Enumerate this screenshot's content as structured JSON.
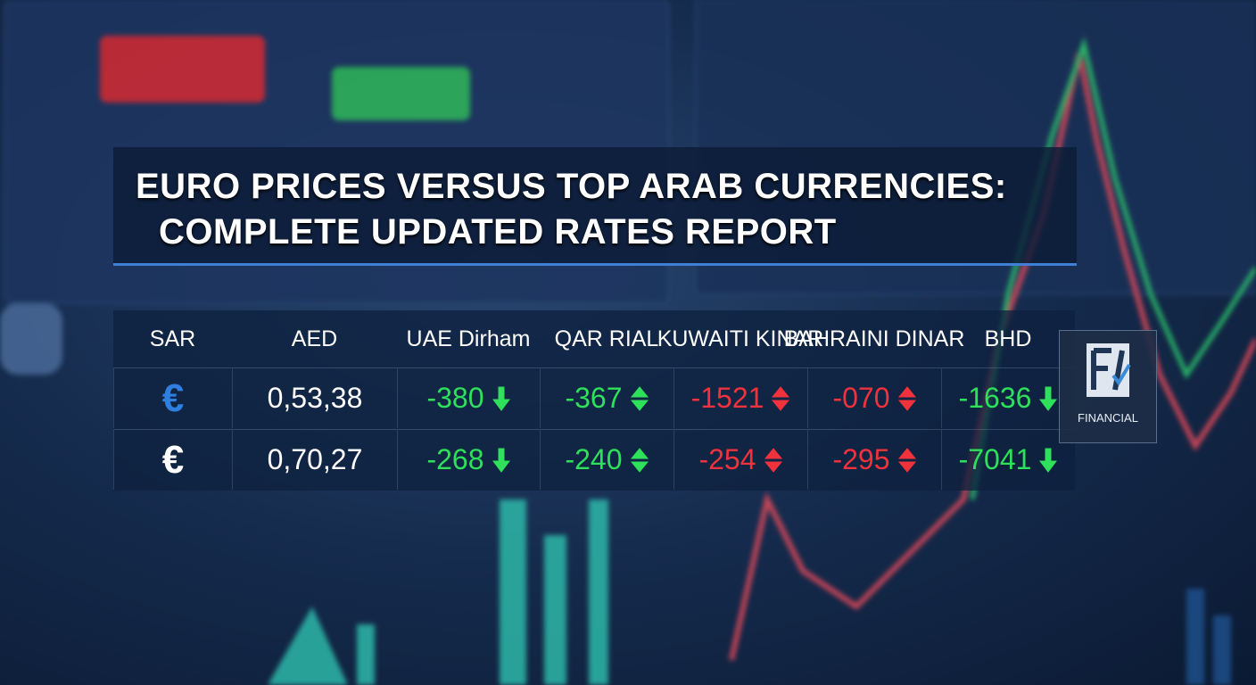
{
  "title": {
    "line1": "EURO PRICES VERSUS TOP ARAB CURRENCIES:",
    "line2": "COMPLETE UPDATED RATES REPORT"
  },
  "table": {
    "headers": [
      "SAR",
      "AED",
      "UAE Dirham",
      "QAR RIAL",
      "KUWAITI KINAR",
      "BAHRAINI DINAR",
      "BHD"
    ],
    "rows": [
      [
        {
          "text": "€",
          "color": "#2f7fe0"
        },
        {
          "text": "0,53,38",
          "color": "#ffffff"
        },
        {
          "text": "-380",
          "color": "#2ee05a",
          "direction": "down"
        },
        {
          "text": "-367",
          "color": "#2ee05a",
          "direction": "up"
        },
        {
          "text": "-1521",
          "color": "#f0323c",
          "direction": "up"
        },
        {
          "text": "-070",
          "color": "#f0323c",
          "direction": "up"
        },
        {
          "text": "-1636",
          "color": "#2ee05a",
          "direction": "down"
        }
      ],
      [
        {
          "text": "€",
          "color": "#ffffff"
        },
        {
          "text": "0,70,27",
          "color": "#ffffff"
        },
        {
          "text": "-268",
          "color": "#2ee05a",
          "direction": "down"
        },
        {
          "text": "-240",
          "color": "#2ee05a",
          "direction": "up"
        },
        {
          "text": "-254",
          "color": "#f0323c",
          "direction": "up"
        },
        {
          "text": "-295",
          "color": "#f0323c",
          "direction": "up"
        },
        {
          "text": "-7041",
          "color": "#2ee05a",
          "direction": "down"
        }
      ]
    ]
  },
  "logo": {
    "text": "FINANCIAL"
  }
}
